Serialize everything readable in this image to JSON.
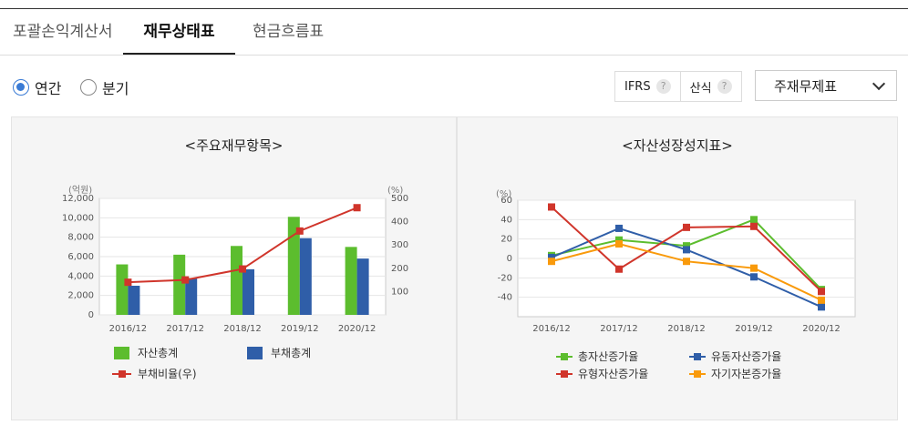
{
  "tabs": [
    {
      "label": "포괄손익계산서",
      "active": false
    },
    {
      "label": "재무상태표",
      "active": true
    },
    {
      "label": "현금흐름표",
      "active": false
    }
  ],
  "period": {
    "options": [
      "연간",
      "분기"
    ],
    "selected": "연간"
  },
  "toolbar": {
    "ifrs_label": "IFRS",
    "formula_label": "산식",
    "select_value": "주재무제표"
  },
  "charts": [
    {
      "title": "<주요재무항목>",
      "type": "bar",
      "y_left_unit": "(억원)",
      "y_right_unit": "(%)",
      "categories": [
        "2016/12",
        "2017/12",
        "2018/12",
        "2019/12",
        "2020/12"
      ],
      "y_left_ticks": [
        "0",
        "2,000",
        "4,000",
        "6,000",
        "8,000",
        "10,000",
        "12,000"
      ],
      "y_right_ticks": [
        "100",
        "200",
        "300",
        "400",
        "500"
      ],
      "ylim_left": [
        0,
        12000
      ],
      "ylim_right": [
        0,
        500
      ],
      "series": [
        {
          "name": "자산총계",
          "kind": "bar",
          "axis": "left",
          "color": "#5cbd2e",
          "values": [
            5200,
            6200,
            7100,
            10100,
            7000
          ]
        },
        {
          "name": "부채총계",
          "kind": "bar",
          "axis": "left",
          "color": "#2f5ea8",
          "values": [
            3000,
            3800,
            4700,
            7900,
            5800
          ]
        },
        {
          "name": "부채비율(우)",
          "kind": "line",
          "axis": "right",
          "color": "#d0352b",
          "values": [
            140,
            150,
            197,
            360,
            460
          ]
        }
      ]
    },
    {
      "title": "<자산성장성지표>",
      "type": "line",
      "y_unit": "(%)",
      "categories": [
        "2016/12",
        "2017/12",
        "2018/12",
        "2019/12",
        "2020/12"
      ],
      "y_ticks": [
        "-40",
        "-20",
        "0",
        "20",
        "40",
        "60"
      ],
      "ylim": [
        -60,
        60
      ],
      "series": [
        {
          "name": "총자산증가율",
          "color": "#5cbd2e",
          "values": [
            3,
            19,
            13,
            40,
            -32
          ]
        },
        {
          "name": "유동자산증가율",
          "color": "#2f5ea8",
          "values": [
            1,
            31,
            9,
            -19,
            -50
          ]
        },
        {
          "name": "유형자산증가율",
          "color": "#d0352b",
          "values": [
            53,
            -11,
            32,
            33,
            -34
          ]
        },
        {
          "name": "자기자본증가율",
          "color": "#f99a0b",
          "values": [
            -3,
            15,
            -3,
            -10,
            -43
          ]
        }
      ]
    }
  ]
}
